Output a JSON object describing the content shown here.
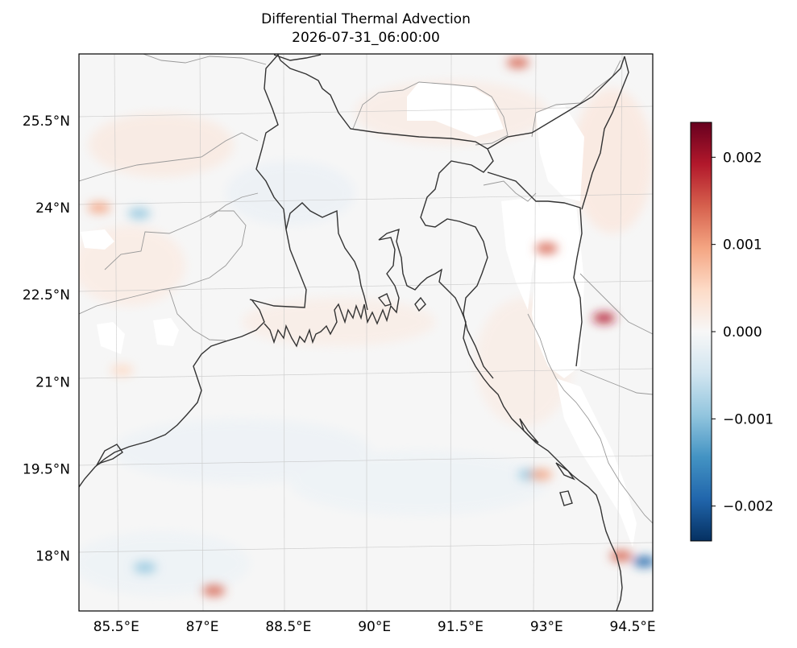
{
  "chart_data": {
    "type": "heatmap",
    "title": "Differential Thermal Advection",
    "subtitle": "2026-07-31_06:00:00",
    "x_ticks": [
      "85.5°E",
      "87°E",
      "88.5°E",
      "90°E",
      "91.5°E",
      "93°E",
      "94.5°E"
    ],
    "y_ticks": [
      "25.5°N",
      "24°N",
      "22.5°N",
      "21°N",
      "19.5°N",
      "18°N"
    ],
    "x_tick_values": [
      85.5,
      87,
      88.5,
      90,
      91.5,
      93,
      94.5
    ],
    "y_tick_values": [
      25.5,
      24,
      22.5,
      21,
      19.5,
      18
    ],
    "xlim": [
      84.85,
      94.85
    ],
    "ylim": [
      17.05,
      26.65
    ],
    "colorbar": {
      "colormap": "RdBu_r",
      "vmin": -0.0024,
      "vmax": 0.0024,
      "ticks": [
        "0.002",
        "0.001",
        "0.000",
        "−0.001",
        "−0.002"
      ],
      "tick_values": [
        0.002,
        0.001,
        0.0,
        -0.001,
        -0.002
      ]
    },
    "grid": true,
    "features": [
      "coastlines",
      "country borders",
      "state borders"
    ],
    "hot_spots": [
      {
        "lon": 85.2,
        "lat": 24.0,
        "value": 0.0008
      },
      {
        "lon": 85.9,
        "lat": 23.9,
        "value": -0.0009
      },
      {
        "lon": 92.5,
        "lat": 26.5,
        "value": 0.0014
      },
      {
        "lon": 93.0,
        "lat": 23.3,
        "value": 0.0016
      },
      {
        "lon": 94.0,
        "lat": 22.1,
        "value": 0.0019
      },
      {
        "lon": 87.2,
        "lat": 17.4,
        "value": 0.0015
      },
      {
        "lon": 86.0,
        "lat": 17.8,
        "value": -0.0008
      },
      {
        "lon": 94.7,
        "lat": 17.9,
        "value": -0.0019
      },
      {
        "lon": 94.3,
        "lat": 18.0,
        "value": 0.0012
      },
      {
        "lon": 92.7,
        "lat": 19.4,
        "value": -0.0012
      },
      {
        "lon": 92.9,
        "lat": 19.4,
        "value": 0.0009
      },
      {
        "lon": 85.6,
        "lat": 21.2,
        "value": 0.0006
      }
    ]
  }
}
